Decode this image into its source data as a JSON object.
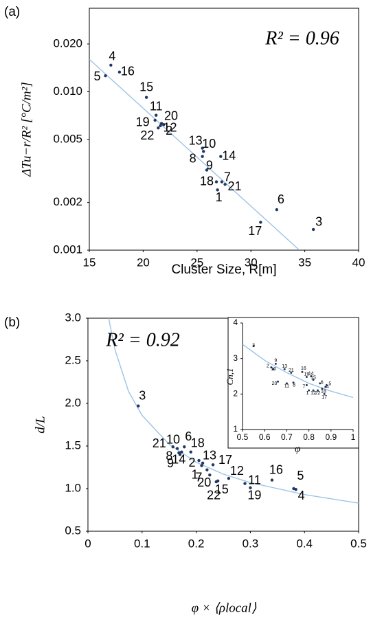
{
  "chart_data": [
    {
      "type": "scatter",
      "panel_label": "(a)",
      "x_label": "Cluster Size, R[m]",
      "y_label": "ΔTu−r/R² [°C/m²]",
      "annotation": "R² = 0.96",
      "xlim": [
        15,
        40
      ],
      "xticks": [
        15,
        20,
        25,
        30,
        35,
        40
      ],
      "ylim": [
        0.001,
        0.0336
      ],
      "ylog": true,
      "yticks": [
        0.001,
        0.002,
        0.005,
        {
          "value": 0.01,
          "label": "0.010"
        },
        {
          "value": 0.02,
          "label": "0.020"
        }
      ],
      "grid": false,
      "color": "#1f3864",
      "fit_color": "#9dc3e6",
      "point_labels": [
        "1",
        "2",
        "3",
        "4",
        "5",
        "6",
        "7",
        "8",
        "9",
        "10",
        "11",
        "12",
        "13",
        "14",
        "15",
        "16",
        "17",
        "18",
        "19",
        "20",
        "21",
        "22"
      ],
      "x": [
        26.9,
        21.9,
        35.8,
        17.0,
        16.5,
        32.4,
        27.3,
        25.5,
        25.9,
        25.6,
        21.2,
        21.6,
        25.5,
        27.2,
        20.3,
        17.8,
        30.9,
        26.8,
        21.1,
        21.7,
        27.6,
        21.4
      ],
      "values": [
        0.0024,
        0.0062,
        0.00135,
        0.0147,
        0.0126,
        0.0018,
        0.0027,
        0.0039,
        0.0032,
        0.0042,
        0.0071,
        0.0061,
        0.0044,
        0.0039,
        0.0092,
        0.0133,
        0.0015,
        0.0027,
        0.0066,
        0.0063,
        0.0026,
        0.0059
      ],
      "fit": {
        "x": [
          15,
          34.5
        ],
        "values": [
          0.016,
          0.001
        ]
      }
    },
    {
      "type": "scatter",
      "panel_label": "(b)",
      "x_label": "φ × ⟨ρlocal⟩",
      "y_label": "d/L",
      "annotation": "R² = 0.92",
      "xlim": [
        0,
        0.5
      ],
      "xticks": [
        0,
        0.1,
        0.2,
        0.3,
        0.4,
        0.5
      ],
      "ylim": [
        0.5,
        3.0
      ],
      "yticks": [
        0.5,
        {
          "value": 1,
          "label": "1.0"
        },
        1.5,
        {
          "value": 2,
          "label": "2.0"
        },
        2.5,
        {
          "value": 3,
          "label": "3.0"
        }
      ],
      "grid": false,
      "color": "#1f3864",
      "fit_color": "#9dc3e6",
      "point_labels": [
        "1",
        "2",
        "3",
        "4",
        "5",
        "6",
        "7",
        "8",
        "9",
        "10",
        "11",
        "12",
        "13",
        "14",
        "15",
        "16",
        "17",
        "18",
        "19",
        "20",
        "21",
        "22"
      ],
      "x": [
        0.21,
        0.205,
        0.093,
        0.384,
        0.38,
        0.178,
        0.22,
        0.168,
        0.17,
        0.165,
        0.29,
        0.26,
        0.212,
        0.173,
        0.237,
        0.34,
        0.231,
        0.19,
        0.3,
        0.225,
        0.157,
        0.24
      ],
      "values": [
        1.27,
        1.33,
        1.97,
        0.99,
        1.0,
        1.49,
        1.22,
        1.42,
        1.4,
        1.47,
        1.06,
        1.12,
        1.3,
        1.43,
        1.08,
        1.1,
        1.28,
        1.43,
        1.01,
        1.16,
        1.49,
        1.09
      ],
      "fit": {
        "x": [
          0.038,
          0.05,
          0.075,
          0.1,
          0.15,
          0.2,
          0.25,
          0.3,
          0.4,
          0.5
        ],
        "values": [
          3.01,
          2.63,
          2.14,
          1.86,
          1.52,
          1.31,
          1.17,
          1.07,
          0.93,
          0.83
        ]
      }
    },
    {
      "type": "scatter",
      "inset": true,
      "x_label": "φ",
      "y_label": "Cn,1",
      "xlim": [
        0.5,
        1
      ],
      "xticks": [
        0.5,
        0.6,
        0.7,
        0.8,
        0.9,
        1
      ],
      "ylim": [
        1,
        4
      ],
      "yticks": [
        1,
        2,
        3,
        4
      ],
      "grid": false,
      "color": "#1f3864",
      "fit_color": "#9dc3e6",
      "point_labels": [
        "1",
        "2",
        "3",
        "4",
        "5",
        "6",
        "7",
        "8",
        "9",
        "10",
        "11",
        "12",
        "13",
        "14",
        "15",
        "16",
        "17",
        "18",
        "19",
        "20",
        "21",
        "22"
      ],
      "x": [
        0.8,
        0.63,
        0.55,
        0.875,
        0.88,
        0.85,
        0.79,
        0.73,
        0.65,
        0.64,
        0.7,
        0.82,
        0.69,
        0.81,
        0.82,
        0.77,
        0.87,
        0.86,
        0.79,
        0.66,
        0.72,
        0.84
      ],
      "values": [
        2.1,
        2.75,
        3.35,
        2.2,
        2.25,
        2.3,
        2.25,
        2.32,
        2.85,
        2.7,
        2.3,
        2.1,
        2.7,
        2.5,
        2.4,
        2.62,
        2.0,
        2.15,
        2.48,
        2.35,
        2.6,
        2.1
      ],
      "fit": {
        "x": [
          0.5,
          0.6,
          0.7,
          0.8,
          0.9,
          1.0
        ],
        "values": [
          3.4,
          2.95,
          2.6,
          2.3,
          2.08,
          1.9
        ]
      }
    }
  ]
}
